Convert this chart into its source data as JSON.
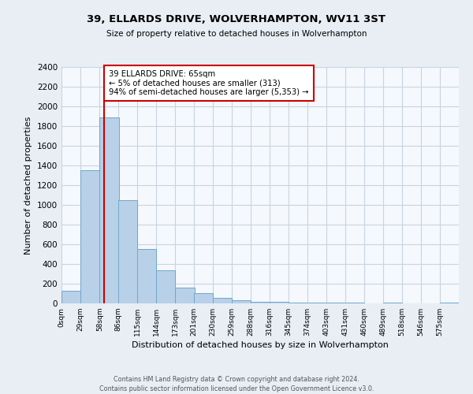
{
  "title": "39, ELLARDS DRIVE, WOLVERHAMPTON, WV11 3ST",
  "subtitle": "Size of property relative to detached houses in Wolverhampton",
  "xlabel": "Distribution of detached houses by size in Wolverhampton",
  "ylabel": "Number of detached properties",
  "bin_labels": [
    "0sqm",
    "29sqm",
    "58sqm",
    "86sqm",
    "115sqm",
    "144sqm",
    "173sqm",
    "201sqm",
    "230sqm",
    "259sqm",
    "288sqm",
    "316sqm",
    "345sqm",
    "374sqm",
    "403sqm",
    "431sqm",
    "460sqm",
    "489sqm",
    "518sqm",
    "546sqm",
    "575sqm"
  ],
  "bar_heights": [
    125,
    1350,
    1890,
    1050,
    550,
    340,
    160,
    105,
    60,
    30,
    20,
    15,
    10,
    10,
    5,
    5,
    0,
    5,
    0,
    0,
    10
  ],
  "bar_color": "#b8d0e8",
  "bar_edge_color": "#6ea8cc",
  "property_line_x": 65,
  "property_line_color": "#cc0000",
  "annotation_line1": "39 ELLARDS DRIVE: 65sqm",
  "annotation_line2": "← 5% of detached houses are smaller (313)",
  "annotation_line3": "94% of semi-detached houses are larger (5,353) →",
  "annotation_box_color": "white",
  "annotation_box_edge": "#cc0000",
  "ylim": [
    0,
    2400
  ],
  "yticks": [
    0,
    200,
    400,
    600,
    800,
    1000,
    1200,
    1400,
    1600,
    1800,
    2000,
    2200,
    2400
  ],
  "footer_text": "Contains HM Land Registry data © Crown copyright and database right 2024.\nContains public sector information licensed under the Open Government Licence v3.0.",
  "background_color": "#e8eef4",
  "plot_background_color": "#f5f8fc",
  "grid_color": "#c8d4e0",
  "bin_width": 29,
  "n_bins": 21
}
